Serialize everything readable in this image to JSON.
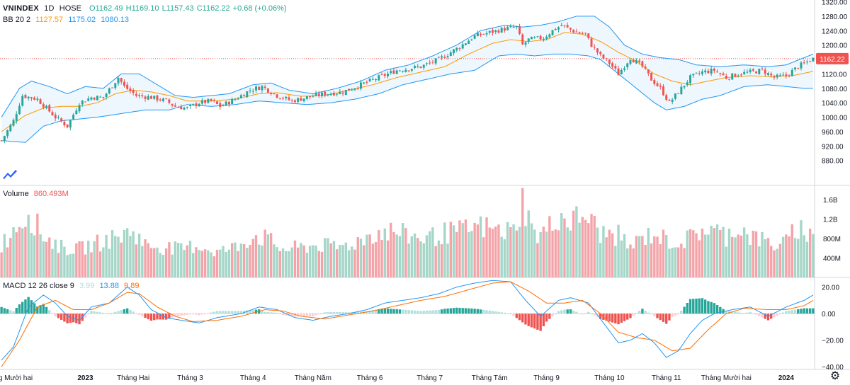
{
  "header": {
    "symbol": "VNINDEX",
    "interval": "1D",
    "exchange": "HOSE",
    "open": "O1162.49",
    "high": "H1169.10",
    "low": "L1157.43",
    "close": "C1162.22",
    "change": "+0.68 (+0.06%)"
  },
  "bb": {
    "label": "BB 20 2",
    "basis": "1127.57",
    "upper": "1175.02",
    "lower": "1080.13"
  },
  "volume": {
    "label": "Volume",
    "value": "860.493M"
  },
  "macd": {
    "label": "MACD 12 26 close 9",
    "hist": "3.99",
    "macd": "13.88",
    "signal": "9.89"
  },
  "colors": {
    "up": "#26a69a",
    "down": "#ef5350",
    "basis": "#ff9800",
    "band": "#2196f3",
    "macd": "#2196f3",
    "signal": "#ff6d00",
    "volUp": "#a5d6c8",
    "volDown": "#f4a4a9"
  },
  "chart_data": [
    {
      "type": "candlestick",
      "title": "VNINDEX 1D HOSE",
      "y_axis_ticks": [
        "1320.00",
        "1280.00",
        "1240.00",
        "1200.00",
        "1160.00",
        "1120.00",
        "1080.00",
        "1040.00",
        "1000.00",
        "960.00",
        "920.00",
        "880.00"
      ],
      "ylim": [
        850,
        1325
      ],
      "last_price_label": "1162.22",
      "x_tick_labels": [
        "Tháng Mười hai",
        "2023",
        "Tháng Hai",
        "Tháng 3",
        "Tháng 4",
        "Tháng Năm",
        "Tháng 6",
        "Tháng 7",
        "Tháng Tám",
        "Tháng 9",
        "Tháng 10",
        "Tháng 11",
        "Tháng Mười hai",
        "2024"
      ],
      "x_tick_bar_index": [
        2,
        28,
        44,
        63,
        84,
        104,
        123,
        143,
        163,
        182,
        203,
        222,
        242,
        262
      ],
      "bar_count": 272,
      "close_keypoints": [
        [
          0,
          935
        ],
        [
          4,
          990
        ],
        [
          7,
          1060
        ],
        [
          12,
          1050
        ],
        [
          18,
          1000
        ],
        [
          22,
          975
        ],
        [
          26,
          1040
        ],
        [
          30,
          1055
        ],
        [
          34,
          1055
        ],
        [
          39,
          1110
        ],
        [
          41,
          1085
        ],
        [
          45,
          1060
        ],
        [
          50,
          1055
        ],
        [
          55,
          1045
        ],
        [
          58,
          1030
        ],
        [
          62,
          1025
        ],
        [
          66,
          1040
        ],
        [
          70,
          1045
        ],
        [
          73,
          1030
        ],
        [
          78,
          1050
        ],
        [
          83,
          1075
        ],
        [
          87,
          1085
        ],
        [
          92,
          1060
        ],
        [
          97,
          1045
        ],
        [
          102,
          1055
        ],
        [
          108,
          1065
        ],
        [
          114,
          1070
        ],
        [
          120,
          1090
        ],
        [
          126,
          1110
        ],
        [
          132,
          1130
        ],
        [
          140,
          1140
        ],
        [
          146,
          1160
        ],
        [
          152,
          1190
        ],
        [
          158,
          1225
        ],
        [
          163,
          1235
        ],
        [
          168,
          1245
        ],
        [
          172,
          1250
        ],
        [
          174,
          1200
        ],
        [
          176,
          1215
        ],
        [
          181,
          1220
        ],
        [
          184,
          1240
        ],
        [
          187,
          1255
        ],
        [
          192,
          1235
        ],
        [
          195,
          1230
        ],
        [
          197,
          1200
        ],
        [
          200,
          1170
        ],
        [
          203,
          1150
        ],
        [
          206,
          1120
        ],
        [
          210,
          1165
        ],
        [
          214,
          1140
        ],
        [
          217,
          1105
        ],
        [
          220,
          1080
        ],
        [
          223,
          1040
        ],
        [
          226,
          1070
        ],
        [
          230,
          1110
        ],
        [
          234,
          1125
        ],
        [
          238,
          1130
        ],
        [
          242,
          1110
        ],
        [
          246,
          1120
        ],
        [
          250,
          1125
        ],
        [
          254,
          1130
        ],
        [
          258,
          1110
        ],
        [
          262,
          1115
        ],
        [
          266,
          1140
        ],
        [
          271,
          1162
        ]
      ],
      "bb_upper_keypoints": [
        [
          0,
          1000
        ],
        [
          6,
          1080
        ],
        [
          10,
          1100
        ],
        [
          16,
          1085
        ],
        [
          22,
          1065
        ],
        [
          28,
          1085
        ],
        [
          34,
          1080
        ],
        [
          40,
          1120
        ],
        [
          46,
          1120
        ],
        [
          52,
          1090
        ],
        [
          58,
          1060
        ],
        [
          64,
          1055
        ],
        [
          70,
          1060
        ],
        [
          76,
          1065
        ],
        [
          84,
          1090
        ],
        [
          90,
          1095
        ],
        [
          96,
          1075
        ],
        [
          104,
          1065
        ],
        [
          112,
          1080
        ],
        [
          120,
          1100
        ],
        [
          128,
          1130
        ],
        [
          136,
          1145
        ],
        [
          144,
          1170
        ],
        [
          152,
          1200
        ],
        [
          160,
          1240
        ],
        [
          168,
          1255
        ],
        [
          174,
          1250
        ],
        [
          180,
          1255
        ],
        [
          186,
          1265
        ],
        [
          192,
          1280
        ],
        [
          198,
          1280
        ],
        [
          203,
          1250
        ],
        [
          208,
          1200
        ],
        [
          214,
          1175
        ],
        [
          220,
          1165
        ],
        [
          226,
          1160
        ],
        [
          232,
          1145
        ],
        [
          240,
          1140
        ],
        [
          248,
          1145
        ],
        [
          256,
          1140
        ],
        [
          262,
          1145
        ],
        [
          268,
          1165
        ],
        [
          271,
          1175
        ]
      ],
      "bb_basis_keypoints": [
        [
          0,
          960
        ],
        [
          8,
          1005
        ],
        [
          14,
          1025
        ],
        [
          20,
          1030
        ],
        [
          26,
          1030
        ],
        [
          32,
          1040
        ],
        [
          38,
          1065
        ],
        [
          44,
          1075
        ],
        [
          50,
          1070
        ],
        [
          56,
          1060
        ],
        [
          62,
          1045
        ],
        [
          70,
          1045
        ],
        [
          78,
          1050
        ],
        [
          86,
          1065
        ],
        [
          92,
          1068
        ],
        [
          100,
          1058
        ],
        [
          108,
          1060
        ],
        [
          116,
          1075
        ],
        [
          124,
          1090
        ],
        [
          132,
          1110
        ],
        [
          140,
          1125
        ],
        [
          148,
          1140
        ],
        [
          156,
          1175
        ],
        [
          164,
          1205
        ],
        [
          170,
          1215
        ],
        [
          176,
          1210
        ],
        [
          182,
          1215
        ],
        [
          188,
          1235
        ],
        [
          194,
          1230
        ],
        [
          200,
          1210
        ],
        [
          206,
          1180
        ],
        [
          212,
          1155
        ],
        [
          218,
          1120
        ],
        [
          224,
          1100
        ],
        [
          230,
          1090
        ],
        [
          236,
          1100
        ],
        [
          242,
          1110
        ],
        [
          250,
          1115
        ],
        [
          258,
          1112
        ],
        [
          264,
          1115
        ],
        [
          271,
          1127
        ]
      ],
      "bb_lower_keypoints": [
        [
          0,
          935
        ],
        [
          8,
          930
        ],
        [
          14,
          975
        ],
        [
          20,
          990
        ],
        [
          26,
          995
        ],
        [
          32,
          1000
        ],
        [
          40,
          1010
        ],
        [
          48,
          1020
        ],
        [
          56,
          1020
        ],
        [
          62,
          1035
        ],
        [
          70,
          1030
        ],
        [
          78,
          1035
        ],
        [
          86,
          1045
        ],
        [
          94,
          1040
        ],
        [
          102,
          1035
        ],
        [
          110,
          1040
        ],
        [
          118,
          1050
        ],
        [
          126,
          1065
        ],
        [
          134,
          1090
        ],
        [
          142,
          1105
        ],
        [
          150,
          1120
        ],
        [
          158,
          1130
        ],
        [
          166,
          1170
        ],
        [
          172,
          1175
        ],
        [
          178,
          1170
        ],
        [
          184,
          1175
        ],
        [
          190,
          1175
        ],
        [
          196,
          1170
        ],
        [
          200,
          1160
        ],
        [
          206,
          1120
        ],
        [
          212,
          1080
        ],
        [
          218,
          1040
        ],
        [
          222,
          1020
        ],
        [
          228,
          1030
        ],
        [
          234,
          1050
        ],
        [
          240,
          1060
        ],
        [
          248,
          1085
        ],
        [
          256,
          1090
        ],
        [
          262,
          1085
        ],
        [
          268,
          1080
        ],
        [
          271,
          1080
        ]
      ]
    },
    {
      "type": "bar",
      "title": "Volume",
      "y_axis_ticks": [
        "1.6B",
        "1.2B",
        "800M",
        "400M"
      ],
      "ylim": [
        0,
        1800
      ],
      "unit": "M",
      "value_keypoints": [
        [
          0,
          700
        ],
        [
          6,
          1200
        ],
        [
          9,
          1400
        ],
        [
          14,
          900
        ],
        [
          20,
          650
        ],
        [
          25,
          600
        ],
        [
          30,
          700
        ],
        [
          35,
          800
        ],
        [
          40,
          900
        ],
        [
          44,
          1000
        ],
        [
          48,
          700
        ],
        [
          55,
          650
        ],
        [
          60,
          600
        ],
        [
          65,
          700
        ],
        [
          72,
          550
        ],
        [
          78,
          650
        ],
        [
          84,
          900
        ],
        [
          88,
          850
        ],
        [
          94,
          600
        ],
        [
          100,
          650
        ],
        [
          106,
          700
        ],
        [
          112,
          650
        ],
        [
          118,
          750
        ],
        [
          124,
          950
        ],
        [
          130,
          1000
        ],
        [
          136,
          900
        ],
        [
          142,
          850
        ],
        [
          148,
          950
        ],
        [
          154,
          1000
        ],
        [
          160,
          1100
        ],
        [
          166,
          1000
        ],
        [
          171,
          1000
        ],
        [
          174,
          1650
        ],
        [
          178,
          900
        ],
        [
          182,
          1000
        ],
        [
          186,
          1350
        ],
        [
          190,
          1200
        ],
        [
          195,
          1350
        ],
        [
          200,
          950
        ],
        [
          206,
          900
        ],
        [
          210,
          650
        ],
        [
          214,
          850
        ],
        [
          218,
          950
        ],
        [
          222,
          800
        ],
        [
          226,
          750
        ],
        [
          230,
          850
        ],
        [
          234,
          1050
        ],
        [
          238,
          1000
        ],
        [
          242,
          900
        ],
        [
          246,
          1100
        ],
        [
          250,
          900
        ],
        [
          254,
          800
        ],
        [
          258,
          700
        ],
        [
          262,
          750
        ],
        [
          266,
          1100
        ],
        [
          271,
          860
        ]
      ]
    },
    {
      "type": "line",
      "title": "MACD 12 26 close 9",
      "y_axis_ticks": [
        "20.00",
        "0.00",
        "−20.00",
        "−40.00"
      ],
      "ylim": [
        -42,
        23
      ],
      "macd_keypoints": [
        [
          0,
          -35
        ],
        [
          4,
          -25
        ],
        [
          9,
          5
        ],
        [
          14,
          14
        ],
        [
          18,
          8
        ],
        [
          22,
          -2
        ],
        [
          26,
          -5
        ],
        [
          30,
          5
        ],
        [
          36,
          8
        ],
        [
          42,
          20
        ],
        [
          46,
          14
        ],
        [
          50,
          3
        ],
        [
          55,
          -3
        ],
        [
          60,
          -5
        ],
        [
          66,
          -7
        ],
        [
          72,
          -3
        ],
        [
          80,
          0
        ],
        [
          86,
          5
        ],
        [
          92,
          3
        ],
        [
          98,
          -3
        ],
        [
          104,
          -5
        ],
        [
          110,
          -2
        ],
        [
          116,
          0
        ],
        [
          122,
          3
        ],
        [
          128,
          8
        ],
        [
          134,
          10
        ],
        [
          140,
          12
        ],
        [
          146,
          15
        ],
        [
          152,
          20
        ],
        [
          158,
          23
        ],
        [
          164,
          25
        ],
        [
          170,
          24
        ],
        [
          175,
          10
        ],
        [
          180,
          -2
        ],
        [
          186,
          10
        ],
        [
          190,
          12
        ],
        [
          196,
          8
        ],
        [
          202,
          -10
        ],
        [
          206,
          -22
        ],
        [
          210,
          -20
        ],
        [
          214,
          -15
        ],
        [
          218,
          -22
        ],
        [
          222,
          -33
        ],
        [
          226,
          -28
        ],
        [
          230,
          -15
        ],
        [
          234,
          -5
        ],
        [
          238,
          0
        ],
        [
          244,
          3
        ],
        [
          250,
          5
        ],
        [
          256,
          -2
        ],
        [
          262,
          5
        ],
        [
          268,
          10
        ],
        [
          271,
          14
        ]
      ],
      "signal_keypoints": [
        [
          0,
          -40
        ],
        [
          6,
          -20
        ],
        [
          12,
          5
        ],
        [
          18,
          10
        ],
        [
          24,
          3
        ],
        [
          30,
          3
        ],
        [
          36,
          8
        ],
        [
          42,
          16
        ],
        [
          46,
          15
        ],
        [
          52,
          5
        ],
        [
          58,
          -2
        ],
        [
          64,
          -6
        ],
        [
          72,
          -5
        ],
        [
          80,
          -2
        ],
        [
          88,
          3
        ],
        [
          94,
          2
        ],
        [
          100,
          -2
        ],
        [
          108,
          -4
        ],
        [
          116,
          -1
        ],
        [
          124,
          2
        ],
        [
          132,
          6
        ],
        [
          140,
          10
        ],
        [
          148,
          13
        ],
        [
          156,
          18
        ],
        [
          164,
          23
        ],
        [
          170,
          24
        ],
        [
          176,
          17
        ],
        [
          182,
          8
        ],
        [
          188,
          8
        ],
        [
          194,
          10
        ],
        [
          200,
          0
        ],
        [
          206,
          -14
        ],
        [
          212,
          -18
        ],
        [
          218,
          -20
        ],
        [
          224,
          -28
        ],
        [
          230,
          -26
        ],
        [
          236,
          -12
        ],
        [
          242,
          0
        ],
        [
          248,
          4
        ],
        [
          256,
          3
        ],
        [
          262,
          3
        ],
        [
          268,
          6
        ],
        [
          271,
          10
        ]
      ],
      "histogram_note": "histogram = MACD − signal"
    }
  ]
}
